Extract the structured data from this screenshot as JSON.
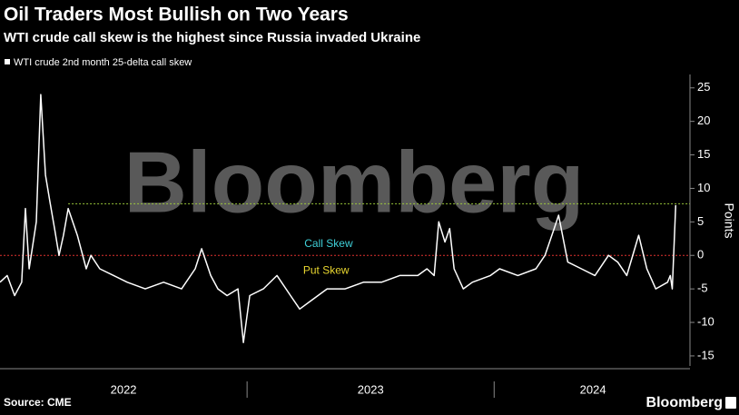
{
  "chart_data": {
    "type": "line",
    "title": "Oil Traders Most Bullish on Two Years",
    "subtitle": "WTI crude call skew is the highest since Russia invaded Ukraine",
    "watermark": "Bloomberg",
    "y_label": "Points",
    "source": "Source: CME",
    "logo": "Bloomberg",
    "annotations": [
      {
        "text": "Call Skew",
        "color": "#3fd0d8",
        "x": 2023.33,
        "y": 1.7
      },
      {
        "text": "Put Skew",
        "color": "#e8d630",
        "x": 2023.32,
        "y": -2.3
      }
    ],
    "reference_lines": [
      {
        "value": 0,
        "color": "#e0322f"
      },
      {
        "value": 7.7,
        "color": "#9ecb3c",
        "from": 2022.276
      }
    ],
    "xlim": [
      2022.0,
      2024.8
    ],
    "xticks": [
      2022,
      2023,
      2024
    ],
    "ylim": [
      -16.5,
      27
    ],
    "yticks": [
      25,
      20,
      15,
      10,
      5,
      0,
      -5,
      -10,
      -15
    ],
    "x": [
      2022.0,
      2022.029,
      2022.059,
      2022.088,
      2022.103,
      2022.118,
      2022.147,
      2022.165,
      2022.184,
      2022.202,
      2022.221,
      2022.239,
      2022.257,
      2022.276,
      2022.313,
      2022.349,
      2022.368,
      2022.404,
      2022.46,
      2022.515,
      2022.588,
      2022.662,
      2022.735,
      2022.79,
      2022.816,
      2022.853,
      2022.882,
      2022.919,
      2022.963,
      2022.985,
      2023.011,
      2023.066,
      2023.121,
      2023.176,
      2023.213,
      2023.25,
      2023.324,
      2023.397,
      2023.471,
      2023.544,
      2023.618,
      2023.691,
      2023.728,
      2023.757,
      2023.776,
      2023.801,
      2023.82,
      2023.838,
      2023.875,
      2023.912,
      2023.985,
      2024.022,
      2024.096,
      2024.169,
      2024.206,
      2024.243,
      2024.261,
      2024.298,
      2024.353,
      2024.408,
      2024.463,
      2024.5,
      2024.537,
      2024.585,
      2024.618,
      2024.654,
      2024.702,
      2024.713,
      2024.721,
      2024.735
    ],
    "series": [
      {
        "name": "WTI crude 2nd month 25-delta call skew",
        "color": "#ffffff",
        "values": [
          -4,
          -3,
          -6,
          -4,
          7,
          -2,
          5,
          24,
          12,
          8,
          4,
          0,
          3,
          7,
          3,
          -2,
          0,
          -2,
          -3,
          -4,
          -5,
          -4,
          -5,
          -2,
          1,
          -3,
          -5,
          -6,
          -5,
          -13,
          -6,
          -5,
          -3,
          -6,
          -8,
          -7,
          -5,
          -5,
          -4,
          -4,
          -3,
          -3,
          -2,
          -3,
          5,
          2,
          4,
          -2,
          -5,
          -4,
          -3,
          -2,
          -3,
          -2,
          0,
          4,
          6,
          -1,
          -2,
          -3,
          0,
          -1,
          -3,
          3,
          -2,
          -5,
          -4,
          -3,
          -5,
          7.5
        ]
      }
    ]
  }
}
